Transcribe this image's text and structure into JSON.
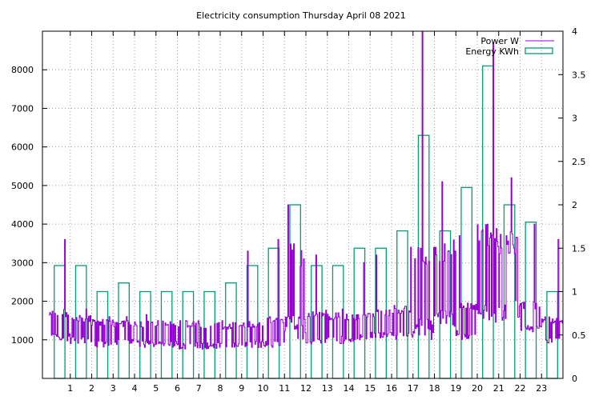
{
  "chart_data": {
    "type": "bar+line",
    "title": "Electricity consumption Thursday April 08 2021",
    "xlim": [
      -0.3,
      24
    ],
    "x_ticks": [
      1,
      2,
      3,
      4,
      5,
      6,
      7,
      8,
      9,
      10,
      11,
      12,
      13,
      14,
      15,
      16,
      17,
      18,
      19,
      20,
      21,
      22,
      23
    ],
    "y_left": {
      "range": [
        0,
        9000
      ],
      "ticks": [
        1000,
        2000,
        3000,
        4000,
        5000,
        6000,
        7000,
        8000
      ]
    },
    "y_right": {
      "range": [
        0,
        4
      ],
      "ticks": [
        0,
        0.5,
        1,
        1.5,
        2,
        2.5,
        3,
        3.5,
        4
      ]
    },
    "grid": true,
    "legend_position": "top-right",
    "colors": {
      "power": "#9400d3",
      "energy": "#009e73"
    },
    "series": [
      {
        "name": "Power W",
        "type": "line",
        "axis": "left",
        "hourly_profile": [
          {
            "hour": 0,
            "base": 950,
            "high": 1800,
            "peak": 3600
          },
          {
            "hour": 1,
            "base": 900,
            "high": 1650,
            "peak": 1800
          },
          {
            "hour": 2,
            "base": 800,
            "high": 1550,
            "peak": 1600
          },
          {
            "hour": 3,
            "base": 850,
            "high": 1500,
            "peak": 1600
          },
          {
            "hour": 4,
            "base": 800,
            "high": 1500,
            "peak": 1650
          },
          {
            "hour": 5,
            "base": 800,
            "high": 1500,
            "peak": 1500
          },
          {
            "hour": 6,
            "base": 750,
            "high": 1500,
            "peak": 1500
          },
          {
            "hour": 7,
            "base": 750,
            "high": 1450,
            "peak": 1450
          },
          {
            "hour": 8,
            "base": 750,
            "high": 1450,
            "peak": 1500
          },
          {
            "hour": 9,
            "base": 800,
            "high": 1500,
            "peak": 3300
          },
          {
            "hour": 10,
            "base": 800,
            "high": 1600,
            "peak": 3600
          },
          {
            "hour": 11,
            "base": 1000,
            "high": 3500,
            "peak": 4500
          },
          {
            "hour": 12,
            "base": 850,
            "high": 1800,
            "peak": 3200
          },
          {
            "hour": 13,
            "base": 900,
            "high": 1700,
            "peak": 1800
          },
          {
            "hour": 14,
            "base": 950,
            "high": 1700,
            "peak": 3000
          },
          {
            "hour": 15,
            "base": 1000,
            "high": 1800,
            "peak": 3200
          },
          {
            "hour": 16,
            "base": 1000,
            "high": 1900,
            "peak": 3400
          },
          {
            "hour": 17,
            "base": 1000,
            "high": 3500,
            "peak": 9000
          },
          {
            "hour": 18,
            "base": 1300,
            "high": 3600,
            "peak": 5100
          },
          {
            "hour": 19,
            "base": 1000,
            "high": 2000,
            "peak": 3700
          },
          {
            "hour": 20,
            "base": 1400,
            "high": 4000,
            "peak": 8700
          },
          {
            "hour": 21,
            "base": 1500,
            "high": 3800,
            "peak": 5200
          },
          {
            "hour": 22,
            "base": 1200,
            "high": 2000,
            "peak": 4000
          },
          {
            "hour": 23,
            "base": 900,
            "high": 1600,
            "peak": 3600
          }
        ]
      },
      {
        "name": "Energy KWh",
        "type": "bar",
        "axis": "right",
        "hours": [
          0,
          1,
          2,
          3,
          4,
          5,
          6,
          7,
          8,
          9,
          10,
          11,
          12,
          13,
          14,
          15,
          16,
          17,
          18,
          19,
          20,
          21,
          22,
          23
        ],
        "values": [
          1.3,
          1.3,
          1.0,
          1.1,
          1.0,
          1.0,
          1.0,
          1.0,
          1.1,
          1.3,
          1.5,
          2.0,
          1.3,
          1.3,
          1.5,
          1.5,
          1.7,
          2.8,
          1.7,
          2.2,
          3.6,
          2.0,
          1.8,
          1.0
        ]
      }
    ]
  }
}
